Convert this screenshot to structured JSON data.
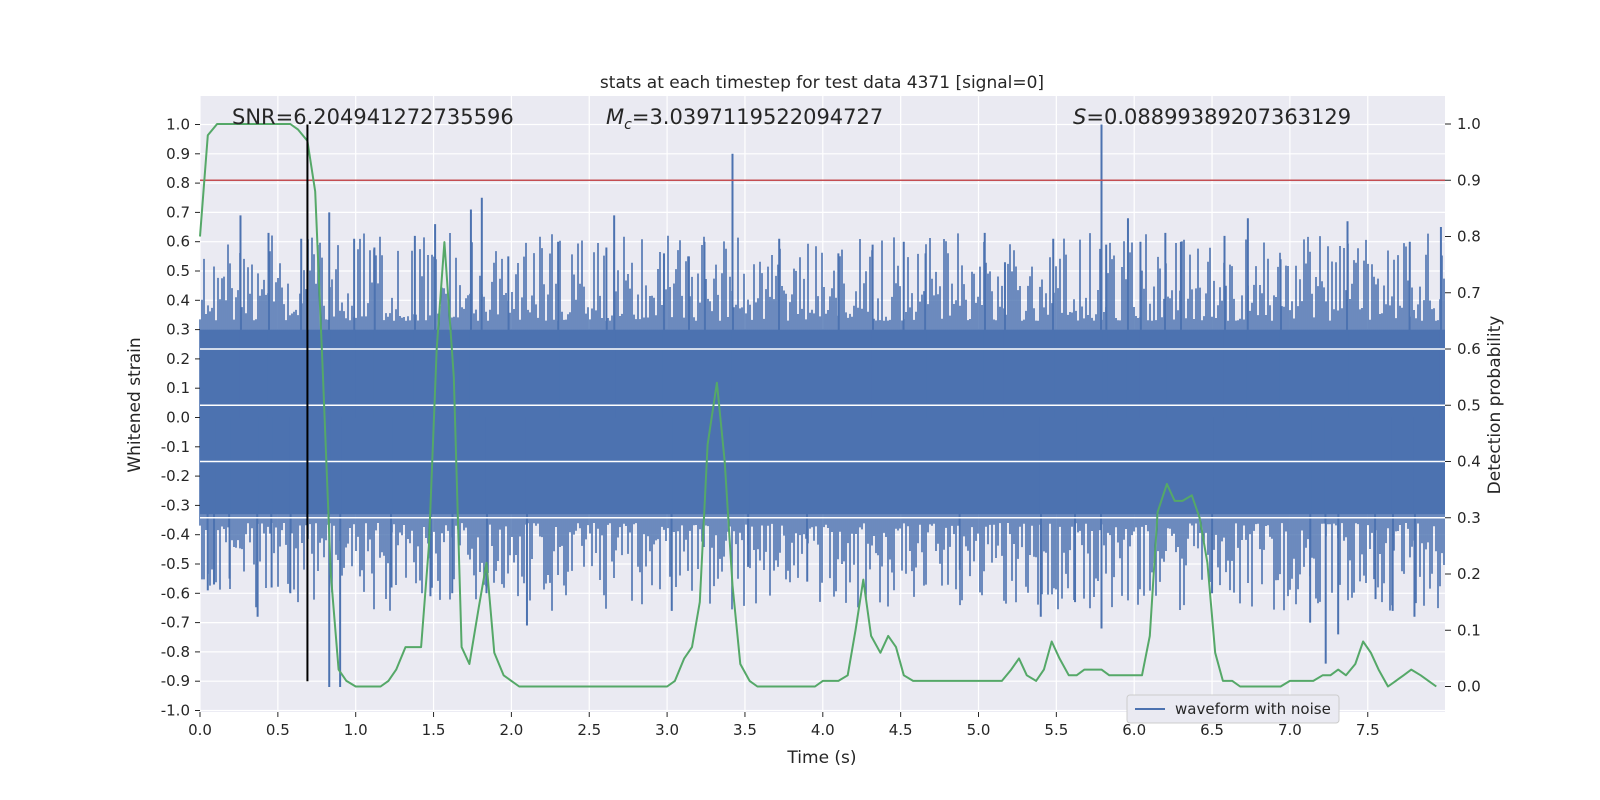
{
  "chart_data": {
    "type": "line",
    "title": "stats at each timestep for test data 4371 [signal=0]",
    "xlabel": "Time (s)",
    "ylabel": "Whitened strain",
    "y2label": "Detection probability",
    "xlim": [
      0,
      8.0
    ],
    "ylim": [
      -1.08,
      1.1
    ],
    "y2lim": [
      -0.055,
      1.035
    ],
    "xticks": [
      "0.0",
      "0.5",
      "1.0",
      "1.5",
      "2.0",
      "2.5",
      "3.0",
      "3.5",
      "4.0",
      "4.5",
      "5.0",
      "5.5",
      "6.0",
      "6.5",
      "7.0",
      "7.5"
    ],
    "yticks": [
      "1.0",
      "0.9",
      "0.8",
      "0.7",
      "0.6",
      "0.5",
      "0.4",
      "0.3",
      "0.2",
      "0.1",
      "0.0",
      "-0.1",
      "-0.2",
      "-0.3",
      "-0.4",
      "-0.5",
      "-0.6",
      "-0.7",
      "-0.8",
      "-0.9",
      "-1.0"
    ],
    "y2ticks": [
      "1.0",
      "0.9",
      "0.8",
      "0.7",
      "0.6",
      "0.5",
      "0.4",
      "0.3",
      "0.2",
      "0.1",
      "0.0"
    ],
    "grid": true,
    "legend": {
      "position": "lower-right",
      "entries": [
        "waveform with noise"
      ]
    },
    "annotations": {
      "snr": {
        "prefix": "SNR",
        "value": "6.204941272735596"
      },
      "mc": {
        "value": "3.0397119522094727"
      },
      "s": {
        "value": "0.08899389207363129"
      }
    },
    "threshold": {
      "axis": "right",
      "value": 0.9,
      "color": "#c44e52"
    },
    "marker_line": {
      "x": 0.69,
      "color": "#000000"
    },
    "waveform": {
      "name": "waveform with noise",
      "color": "#4c72b0",
      "core_envelope": [
        -0.33,
        0.3
      ],
      "spikes": [
        [
          0.05,
          -0.59
        ],
        [
          0.09,
          -0.57
        ],
        [
          0.26,
          0.69
        ],
        [
          0.19,
          -0.55
        ],
        [
          0.37,
          -0.68
        ],
        [
          0.44,
          0.63
        ],
        [
          0.46,
          -0.58
        ],
        [
          0.58,
          -0.6
        ],
        [
          0.65,
          0.61
        ],
        [
          0.83,
          -0.92
        ],
        [
          0.83,
          0.7
        ],
        [
          0.9,
          -0.92
        ],
        [
          0.99,
          0.61
        ],
        [
          1.12,
          0.58
        ],
        [
          1.23,
          -0.58
        ],
        [
          1.38,
          0.62
        ],
        [
          1.48,
          -0.61
        ],
        [
          1.51,
          0.66
        ],
        [
          1.62,
          -0.6
        ],
        [
          1.74,
          0.71
        ],
        [
          1.81,
          0.75
        ],
        [
          1.84,
          -0.6
        ],
        [
          1.98,
          0.55
        ],
        [
          2.1,
          -0.71
        ],
        [
          2.3,
          0.6
        ],
        [
          2.61,
          0.58
        ],
        [
          2.66,
          0.69
        ],
        [
          2.98,
          0.56
        ],
        [
          3.03,
          -0.66
        ],
        [
          3.14,
          0.55
        ],
        [
          3.24,
          0.6
        ],
        [
          3.42,
          0.9
        ],
        [
          3.52,
          -0.51
        ],
        [
          3.72,
          0.61
        ],
        [
          3.9,
          -0.56
        ],
        [
          4.1,
          0.56
        ],
        [
          4.32,
          0.59
        ],
        [
          4.52,
          0.6
        ],
        [
          4.66,
          0.56
        ],
        [
          4.88,
          -0.52
        ],
        [
          5.04,
          0.63
        ],
        [
          5.17,
          0.53
        ],
        [
          5.4,
          -0.68
        ],
        [
          5.48,
          0.61
        ],
        [
          5.62,
          -0.63
        ],
        [
          5.79,
          1.0
        ],
        [
          5.79,
          -0.72
        ],
        [
          5.82,
          0.59
        ],
        [
          5.96,
          0.68
        ],
        [
          6.04,
          0.6
        ],
        [
          6.2,
          0.63
        ],
        [
          6.3,
          0.6
        ],
        [
          6.5,
          -0.6
        ],
        [
          6.58,
          0.62
        ],
        [
          6.73,
          0.68
        ],
        [
          6.94,
          0.54
        ],
        [
          7.13,
          -0.7
        ],
        [
          7.23,
          -0.84
        ],
        [
          7.31,
          -0.74
        ],
        [
          7.37,
          0.67
        ],
        [
          7.55,
          -0.62
        ],
        [
          7.66,
          -0.66
        ],
        [
          7.77,
          0.6
        ],
        [
          7.8,
          -0.68
        ],
        [
          7.97,
          0.65
        ]
      ]
    },
    "probability": {
      "name": "detection probability",
      "color": "#55a868",
      "x": [
        0.0,
        0.05,
        0.11,
        0.16,
        0.21,
        0.26,
        0.32,
        0.37,
        0.42,
        0.48,
        0.53,
        0.58,
        0.63,
        0.69,
        0.74,
        0.79,
        0.84,
        0.89,
        0.94,
        1.0,
        1.05,
        1.1,
        1.16,
        1.21,
        1.26,
        1.32,
        1.37,
        1.42,
        1.47,
        1.52,
        1.57,
        1.63,
        1.68,
        1.73,
        1.79,
        1.84,
        1.89,
        1.95,
        2.0,
        2.05,
        2.1,
        2.16,
        2.21,
        2.26,
        2.31,
        2.37,
        2.42,
        2.47,
        2.53,
        2.58,
        2.63,
        2.68,
        2.74,
        2.79,
        2.84,
        2.89,
        2.95,
        3.0,
        3.05,
        3.11,
        3.16,
        3.21,
        3.26,
        3.32,
        3.37,
        3.42,
        3.47,
        3.53,
        3.58,
        3.63,
        3.68,
        3.74,
        3.79,
        3.84,
        3.89,
        3.95,
        4.0,
        4.05,
        4.1,
        4.16,
        4.21,
        4.26,
        4.31,
        4.37,
        4.42,
        4.47,
        4.52,
        4.58,
        4.63,
        4.68,
        4.73,
        4.79,
        4.84,
        4.89,
        4.95,
        5.0,
        5.05,
        5.1,
        5.15,
        5.21,
        5.26,
        5.31,
        5.37,
        5.42,
        5.47,
        5.52,
        5.58,
        5.63,
        5.68,
        5.73,
        5.79,
        5.84,
        5.89,
        5.94,
        6.0,
        6.05,
        6.1,
        6.15,
        6.21,
        6.26,
        6.31,
        6.37,
        6.42,
        6.47,
        6.52,
        6.57,
        6.63,
        6.68,
        6.73,
        6.79,
        6.84,
        6.89,
        6.94,
        7.0,
        7.05,
        7.1,
        7.15,
        7.21,
        7.26,
        7.31,
        7.36,
        7.42,
        7.47,
        7.52,
        7.57,
        7.63,
        7.68,
        7.73,
        7.78,
        7.84,
        7.89,
        7.94
      ],
      "values": [
        0.8,
        0.98,
        1.0,
        1.0,
        1.0,
        1.0,
        1.0,
        1.0,
        1.0,
        1.0,
        1.0,
        1.0,
        0.99,
        0.97,
        0.88,
        0.55,
        0.2,
        0.03,
        0.01,
        0.0,
        0.0,
        0.0,
        0.0,
        0.01,
        0.03,
        0.07,
        0.07,
        0.07,
        0.25,
        0.6,
        0.79,
        0.55,
        0.07,
        0.04,
        0.14,
        0.22,
        0.06,
        0.02,
        0.01,
        0.0,
        0.0,
        0.0,
        0.0,
        0.0,
        0.0,
        0.0,
        0.0,
        0.0,
        0.0,
        0.0,
        0.0,
        0.0,
        0.0,
        0.0,
        0.0,
        0.0,
        0.0,
        0.0,
        0.01,
        0.05,
        0.07,
        0.15,
        0.43,
        0.54,
        0.4,
        0.18,
        0.04,
        0.01,
        0.0,
        0.0,
        0.0,
        0.0,
        0.0,
        0.0,
        0.0,
        0.0,
        0.01,
        0.01,
        0.01,
        0.02,
        0.1,
        0.19,
        0.09,
        0.06,
        0.09,
        0.07,
        0.02,
        0.01,
        0.01,
        0.01,
        0.01,
        0.01,
        0.01,
        0.01,
        0.01,
        0.01,
        0.01,
        0.01,
        0.01,
        0.03,
        0.05,
        0.02,
        0.01,
        0.03,
        0.08,
        0.05,
        0.02,
        0.02,
        0.03,
        0.03,
        0.03,
        0.02,
        0.02,
        0.02,
        0.02,
        0.02,
        0.09,
        0.31,
        0.36,
        0.33,
        0.33,
        0.34,
        0.3,
        0.22,
        0.06,
        0.01,
        0.01,
        0.0,
        0.0,
        0.0,
        0.0,
        0.0,
        0.0,
        0.01,
        0.01,
        0.01,
        0.01,
        0.02,
        0.02,
        0.03,
        0.02,
        0.04,
        0.08,
        0.06,
        0.03,
        0.0,
        0.01,
        0.02,
        0.03,
        0.02,
        0.01,
        0.0
      ]
    }
  }
}
